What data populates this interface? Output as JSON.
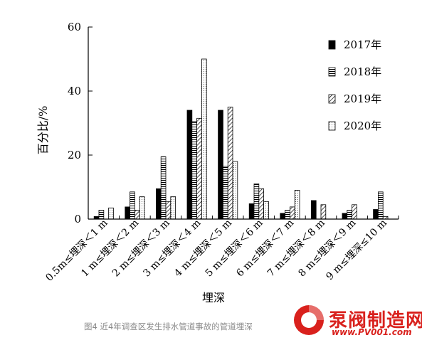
{
  "chart_data": {
    "type": "bar",
    "title": "",
    "xlabel": "埋深",
    "ylabel": "百分比/%",
    "ylim": [
      0,
      60
    ],
    "yticks": [
      "0",
      "20",
      "40",
      "60"
    ],
    "grid": false,
    "legend_position": "top-right",
    "categories": [
      "0.5m≤埋深＜1 m",
      "1 m≤埋深＜2 m",
      "2 m≤埋深＜3 m",
      "3 m≤埋深＜4 m",
      "4 m≤埋深＜5 m",
      "5 m≤埋深＜6 m",
      "6 m≤埋深＜7 m",
      "7 m≤埋深＜8 m",
      "8 m≤埋深＜9 m",
      "9 m≤埋深≤10 m"
    ],
    "series": [
      {
        "name": "2017年",
        "pattern": "solid",
        "values": [
          0.8,
          3.8,
          9.5,
          34.0,
          34.0,
          4.8,
          1.8,
          5.8,
          1.8,
          3.0
        ]
      },
      {
        "name": "2018年",
        "pattern": "hlines",
        "values": [
          2.8,
          8.5,
          19.5,
          30.5,
          16.5,
          11.0,
          2.8,
          0.0,
          2.8,
          8.5
        ]
      },
      {
        "name": "2019年",
        "pattern": "diagonal",
        "values": [
          0.0,
          2.8,
          5.5,
          31.5,
          35.0,
          9.5,
          3.8,
          4.5,
          4.5,
          0.8
        ]
      },
      {
        "name": "2020年",
        "pattern": "dots",
        "values": [
          3.5,
          7.0,
          7.0,
          50.0,
          18.0,
          5.5,
          9.0,
          0.0,
          0.0,
          0.0
        ]
      }
    ]
  },
  "caption": "图4 近4年调查区发生排水管道事故的管道埋深",
  "watermark": {
    "name": "泵阀制造网",
    "url": "www.PV001.com"
  }
}
